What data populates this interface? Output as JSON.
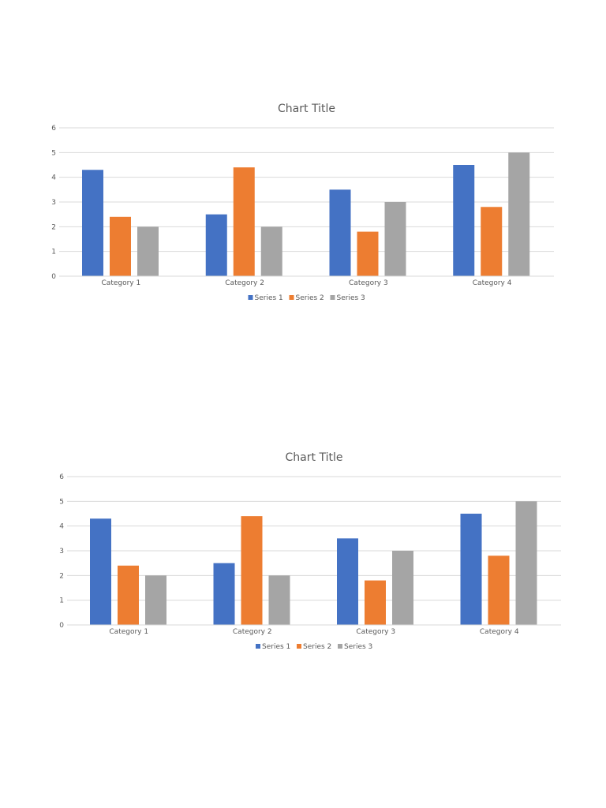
{
  "chart_data": [
    {
      "type": "bar",
      "title": "Chart Title",
      "categories": [
        "Category 1",
        "Category 2",
        "Category 3",
        "Category 4"
      ],
      "series": [
        {
          "name": "Series 1",
          "values": [
            4.3,
            2.5,
            3.5,
            4.5
          ],
          "color": "#4472C4"
        },
        {
          "name": "Series 2",
          "values": [
            2.4,
            4.4,
            1.8,
            2.8
          ],
          "color": "#ED7D31"
        },
        {
          "name": "Series 3",
          "values": [
            2,
            2,
            3,
            5
          ],
          "color": "#A5A5A5"
        }
      ],
      "yticks": [
        0,
        1,
        2,
        3,
        4,
        5,
        6
      ],
      "ylim": [
        0,
        6
      ],
      "xlabel": "",
      "ylabel": "",
      "grid": true,
      "legend": "bottom"
    },
    {
      "type": "bar",
      "title": "Chart Title",
      "categories": [
        "Category 1",
        "Category 2",
        "Category 3",
        "Category 4"
      ],
      "series": [
        {
          "name": "Series 1",
          "values": [
            4.3,
            2.5,
            3.5,
            4.5
          ],
          "color": "#4472C4"
        },
        {
          "name": "Series 2",
          "values": [
            2.4,
            4.4,
            1.8,
            2.8
          ],
          "color": "#ED7D31"
        },
        {
          "name": "Series 3",
          "values": [
            2,
            2,
            3,
            5
          ],
          "color": "#A5A5A5"
        }
      ],
      "yticks": [
        0,
        1,
        2,
        3,
        4,
        5,
        6
      ],
      "ylim": [
        0,
        6
      ],
      "xlabel": "",
      "ylabel": "",
      "grid": true,
      "legend": "bottom"
    }
  ]
}
